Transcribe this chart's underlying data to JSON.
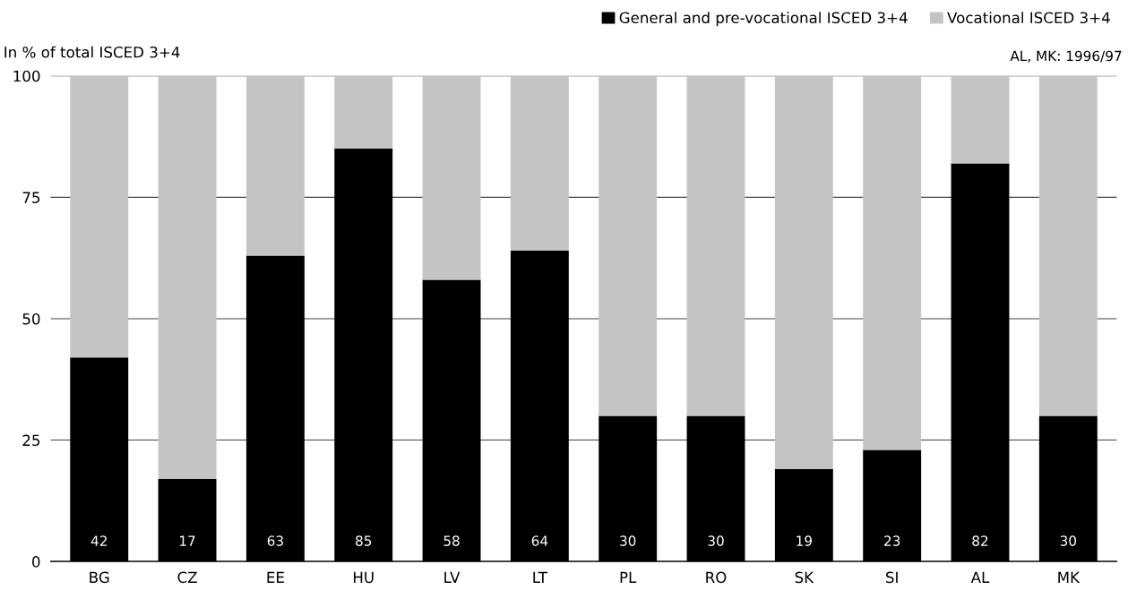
{
  "chart_data": {
    "type": "bar",
    "stacked": true,
    "ylabel": "In % of total ISCED 3+4",
    "categories": [
      "BG",
      "CZ",
      "EE",
      "HU",
      "LV",
      "LT",
      "PL",
      "RO",
      "SK",
      "SI",
      "AL",
      "MK"
    ],
    "series": [
      {
        "name": "General and pre-vocational ISCED 3+4",
        "color": "#000000",
        "values": [
          42,
          17,
          63,
          85,
          58,
          64,
          30,
          30,
          19,
          23,
          82,
          30
        ],
        "value_labels": [
          "42",
          "17",
          "63",
          "85",
          "58",
          "64",
          "30",
          "30",
          "19",
          "23",
          "82",
          "30"
        ]
      },
      {
        "name": "Vocational ISCED 3+4",
        "color": "#c4c4c4",
        "values": [
          58,
          83,
          37,
          15,
          42,
          36,
          70,
          70,
          81,
          77,
          18,
          70
        ]
      }
    ],
    "ylim": [
      0,
      100
    ],
    "yticks": [
      0,
      25,
      50,
      75,
      100
    ],
    "grid": "y",
    "legend": "top right",
    "annotations": [
      "AL, MK: 1996/97"
    ]
  }
}
